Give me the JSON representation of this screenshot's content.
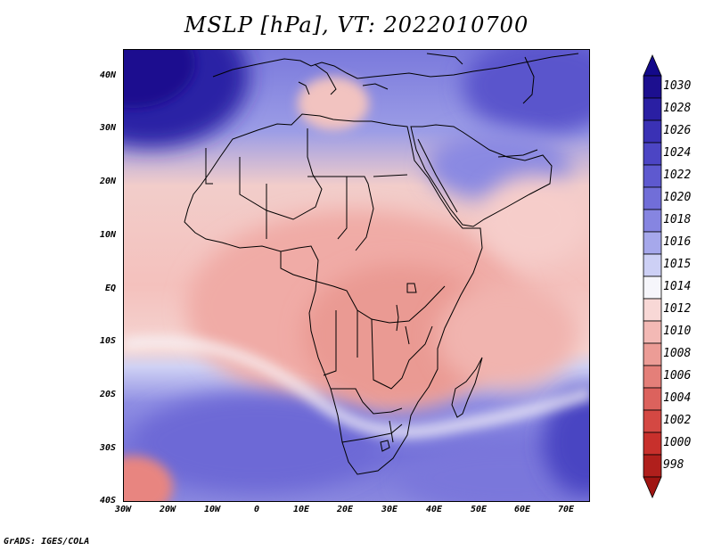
{
  "title": "MSLP [hPa], VT: 2022010700",
  "credit": "GrADS: IGES/COLA",
  "map": {
    "region": "Africa",
    "variable": "Mean sea level pressure",
    "units": "hPa",
    "lon_range": [
      -30,
      75
    ],
    "lat_range": [
      -40,
      45
    ],
    "lat_ticks": [
      {
        "value": 40,
        "label": "40N"
      },
      {
        "value": 30,
        "label": "30N"
      },
      {
        "value": 20,
        "label": "20N"
      },
      {
        "value": 10,
        "label": "10N"
      },
      {
        "value": 0,
        "label": "EQ"
      },
      {
        "value": -10,
        "label": "10S"
      },
      {
        "value": -20,
        "label": "20S"
      },
      {
        "value": -30,
        "label": "30S"
      },
      {
        "value": -40,
        "label": "40S"
      }
    ],
    "lon_ticks": [
      {
        "value": -30,
        "label": "30W"
      },
      {
        "value": -20,
        "label": "20W"
      },
      {
        "value": -10,
        "label": "10W"
      },
      {
        "value": 0,
        "label": "0"
      },
      {
        "value": 10,
        "label": "10E"
      },
      {
        "value": 20,
        "label": "20E"
      },
      {
        "value": 30,
        "label": "30E"
      },
      {
        "value": 40,
        "label": "40E"
      },
      {
        "value": 50,
        "label": "50E"
      },
      {
        "value": 60,
        "label": "60E"
      },
      {
        "value": 70,
        "label": "70E"
      }
    ]
  },
  "colorbar": {
    "levels": [
      {
        "label": "1030",
        "color": "#1c0f8f"
      },
      {
        "label": "1028",
        "color": "#2a1fa3"
      },
      {
        "label": "1026",
        "color": "#3a31b5"
      },
      {
        "label": "1024",
        "color": "#4c45c4"
      },
      {
        "label": "1022",
        "color": "#5e59cf"
      },
      {
        "label": "1020",
        "color": "#716ed8"
      },
      {
        "label": "1018",
        "color": "#8685e1"
      },
      {
        "label": "1016",
        "color": "#a6a8eb"
      },
      {
        "label": "1015",
        "color": "#cdd0f5"
      },
      {
        "label": "1014",
        "color": "#f6f6fb"
      },
      {
        "label": "1012",
        "color": "#f8d8d6"
      },
      {
        "label": "1010",
        "color": "#f3b9b5"
      },
      {
        "label": "1008",
        "color": "#ec9c96"
      },
      {
        "label": "1006",
        "color": "#e47f79"
      },
      {
        "label": "1004",
        "color": "#dc625d"
      },
      {
        "label": "1002",
        "color": "#d44843"
      },
      {
        "label": "1000",
        "color": "#c8302c"
      },
      {
        "label": "998",
        "color": "#b01f1c"
      }
    ],
    "top_arrow_color": "#13098a",
    "bottom_arrow_color": "#a01512"
  }
}
